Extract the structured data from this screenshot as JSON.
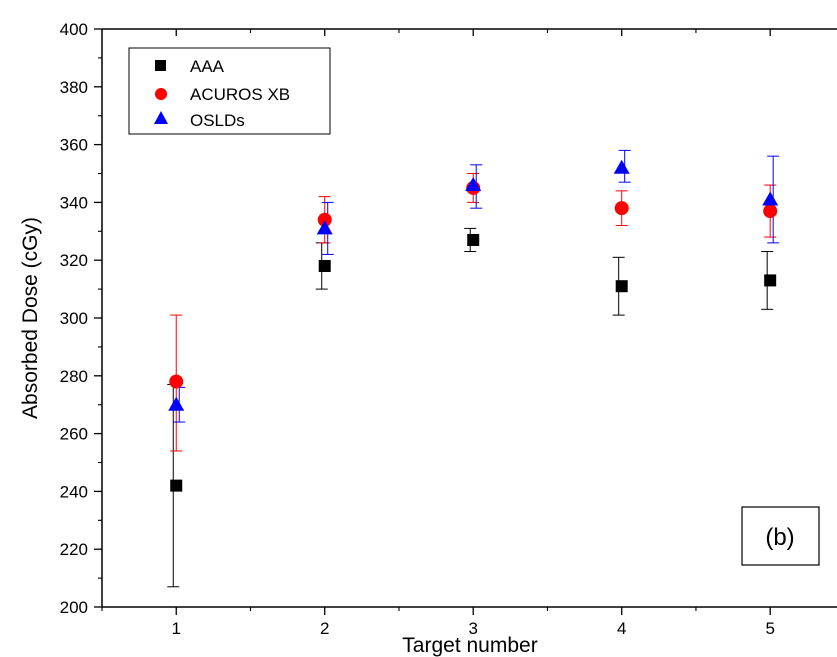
{
  "chart_data": {
    "type": "scatter",
    "xlabel": "Target number",
    "ylabel": "Absorbed Dose (cGy)",
    "panel_label": "(b)",
    "x": [
      1,
      2,
      3,
      4,
      5
    ],
    "x_ticks": [
      "1",
      "2",
      "3",
      "4",
      "5"
    ],
    "xlim": [
      0.5,
      5.45
    ],
    "ylim": [
      200,
      400
    ],
    "y_ticks": [
      "200",
      "220",
      "240",
      "260",
      "280",
      "300",
      "320",
      "340",
      "360",
      "380",
      "400"
    ],
    "grid": false,
    "legend_position": "top-left",
    "series": [
      {
        "name": "AAA",
        "marker": "square",
        "color": "#000000",
        "values": [
          242,
          318,
          327,
          311,
          313
        ],
        "err_low": [
          35,
          8,
          4,
          10,
          10
        ],
        "err_high": [
          35,
          8,
          4,
          10,
          10
        ]
      },
      {
        "name": "ACUROS XB",
        "marker": "circle",
        "color": "#ff0000",
        "values": [
          278,
          334,
          345,
          338,
          337
        ],
        "err_low": [
          24,
          8,
          5,
          6,
          9
        ],
        "err_high": [
          23,
          8,
          5,
          6,
          9
        ]
      },
      {
        "name": "OSLDs",
        "marker": "triangle",
        "color": "#0000ff",
        "values": [
          270,
          331,
          346,
          352,
          341
        ],
        "err_low": [
          6,
          9,
          8,
          5,
          15
        ],
        "err_high": [
          6,
          9,
          7,
          6,
          15
        ]
      }
    ]
  }
}
